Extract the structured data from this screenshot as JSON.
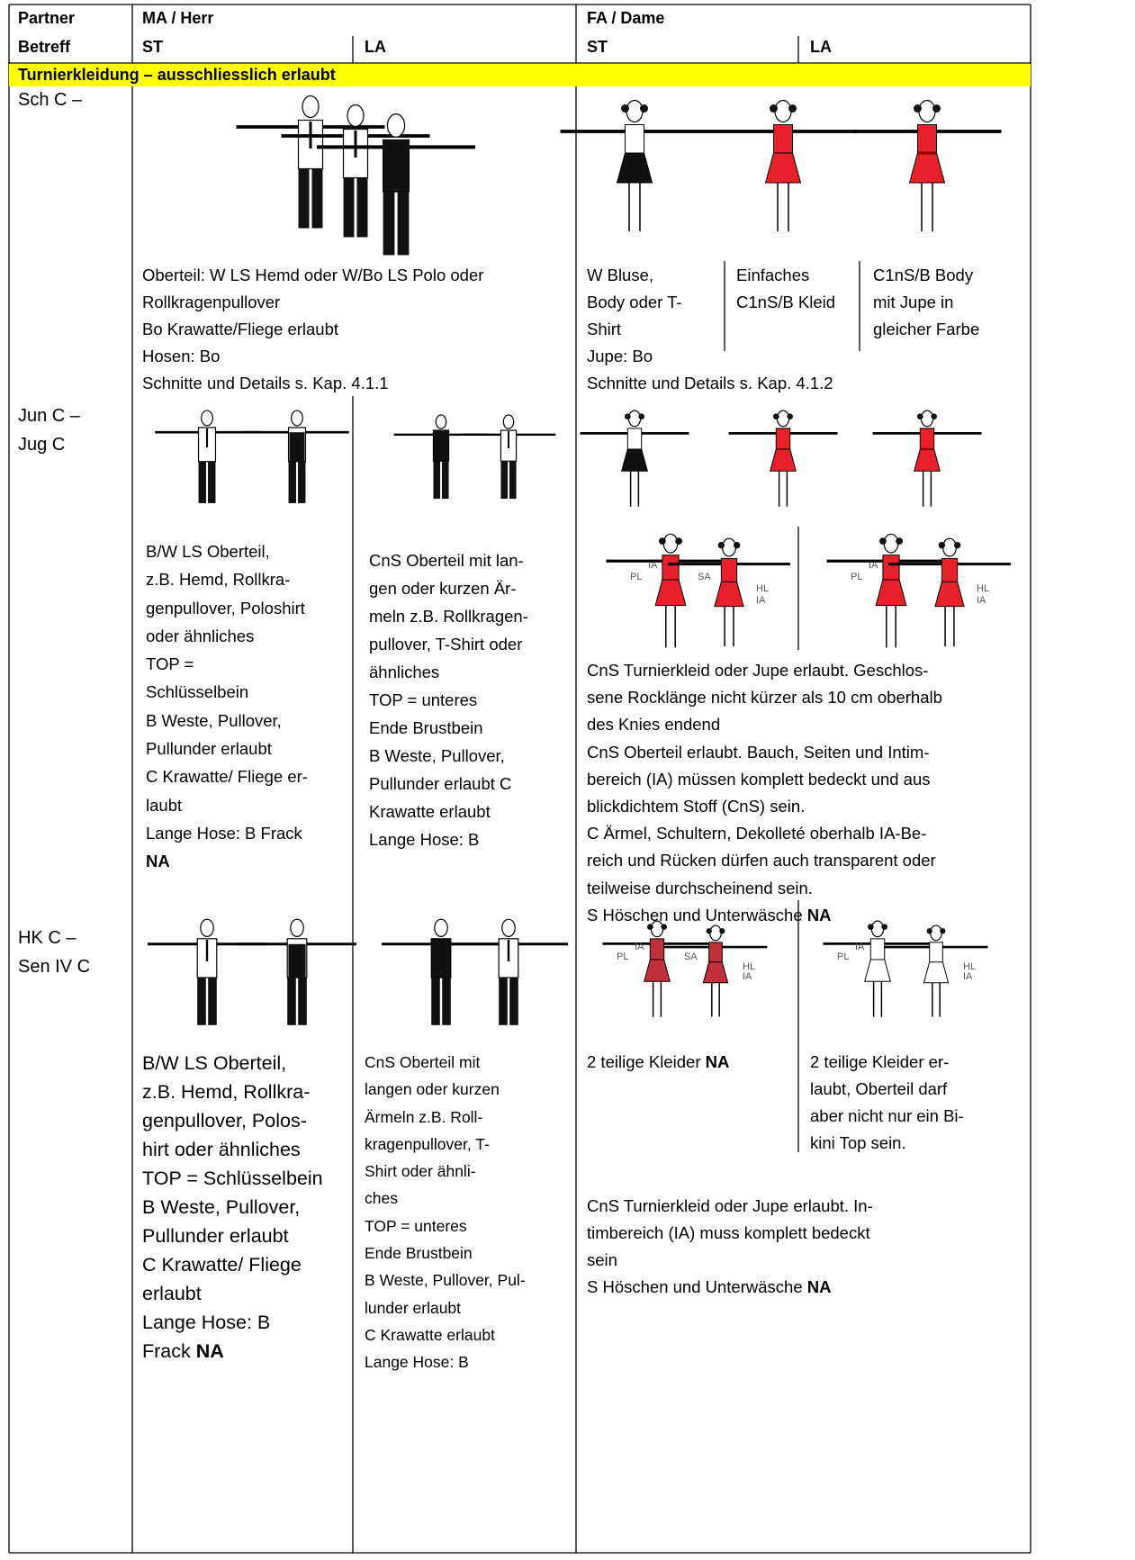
{
  "header": {
    "partner": "Partner",
    "betreff": "Betreff",
    "ma": "MA / Herr",
    "fa": "FA / Dame",
    "ma_st": "ST",
    "ma_la": "LA",
    "fa_st": "ST",
    "fa_la": "LA"
  },
  "section": "Turnierkleidung – ausschliesslich erlaubt",
  "dress_labels": [
    "IA",
    "PL",
    "SA",
    "HL",
    "IA"
  ],
  "rows": [
    {
      "label": [
        "Sch C –"
      ],
      "ma": [
        "Oberteil: W LS Hemd oder W/Bo LS Polo oder",
        "Rollkragenpullover",
        "Bo Krawatte/Fliege erlaubt",
        "Hosen: Bo",
        "Schnitte und Details s. Kap. 4.1.1"
      ],
      "fa_columns": [
        [
          "W Bluse,",
          "Body oder T-",
          "Shirt",
          "Jupe: Bo"
        ],
        [
          "Einfaches",
          "C1nS/B Kleid"
        ],
        [
          "C1nS/B Body",
          "mit Jupe in",
          "gleicher Farbe"
        ]
      ],
      "fa": [
        "Schnitte und Details s. Kap. 4.1.2"
      ]
    },
    {
      "label": [
        "Jun C –",
        "Jug C"
      ],
      "ma_st": [
        "B/W LS Oberteil,",
        "z.B. Hemd, Rollkra-",
        "genpullover, Poloshirt",
        "oder ähnliches",
        "TOP =",
        "Schlüsselbein",
        "B Weste, Pullover,",
        "Pullunder erlaubt",
        "C Krawatte/ Fliege er-",
        "laubt",
        "Lange Hose: B Frack",
        {
          "bold": "NA"
        }
      ],
      "ma_la": [
        "CnS Oberteil mit lan-",
        "gen oder kurzen Är-",
        "meln z.B. Rollkragen-",
        "pullover, T-Shirt oder",
        "ähnliches",
        "TOP = unteres",
        "Ende Brustbein",
        "B Weste, Pullover,",
        "Pullunder erlaubt C",
        "Krawatte erlaubt",
        "Lange Hose: B"
      ],
      "fa": [
        "CnS Turnierkleid oder Jupe erlaubt. Geschlos-",
        "sene Rocklänge nicht kürzer als 10 cm oberhalb",
        "des Knies endend",
        "CnS Oberteil erlaubt. Bauch, Seiten und Intim-",
        "bereich (IA) müssen komplett bedeckt und aus",
        "blickdichtem Stoff (CnS) sein.",
        "C Ärmel, Schultern, Dekolleté oberhalb IA-Be-",
        "reich und Rücken dürfen auch transparent oder",
        "teilweise durchscheinend sein.",
        {
          "text": "S Höschen und Unterwäsche",
          "bold": "NA"
        }
      ]
    },
    {
      "label": [
        "HK C –",
        "Sen IV C"
      ],
      "ma_st": [
        "B/W LS Oberteil,",
        "z.B. Hemd, Rollkra-",
        "genpullover, Polos-",
        "hirt oder ähnliches",
        "TOP = Schlüsselbein",
        "B Weste, Pullover,",
        "Pullunder erlaubt",
        "C Krawatte/ Fliege",
        "erlaubt",
        "Lange Hose: B",
        {
          "text": "Frack",
          "bold": "NA"
        }
      ],
      "ma_la": [
        "CnS Oberteil mit",
        "langen oder kurzen",
        "Ärmeln z.B. Roll-",
        "kragenpullover, T-",
        "Shirt oder ähnli-",
        "ches",
        "TOP = unteres",
        "Ende Brustbein",
        "B Weste, Pullover, Pul-",
        "lunder erlaubt",
        "C Krawatte erlaubt",
        "Lange Hose: B"
      ],
      "fa_columns": [
        [
          {
            "text": "2 teilige Kleider",
            "bold": "NA"
          }
        ],
        [
          "2 teilige Kleider er-",
          "laubt, Oberteil darf",
          "aber nicht nur ein Bi-",
          "kini Top sein."
        ]
      ],
      "fa": [
        "CnS Turnierkleid oder Jupe erlaubt. In-",
        "timbereich (IA) muss komplett bedeckt",
        "sein",
        {
          "text": "S Höschen und Unterwäsche",
          "bold": "NA"
        }
      ]
    }
  ]
}
